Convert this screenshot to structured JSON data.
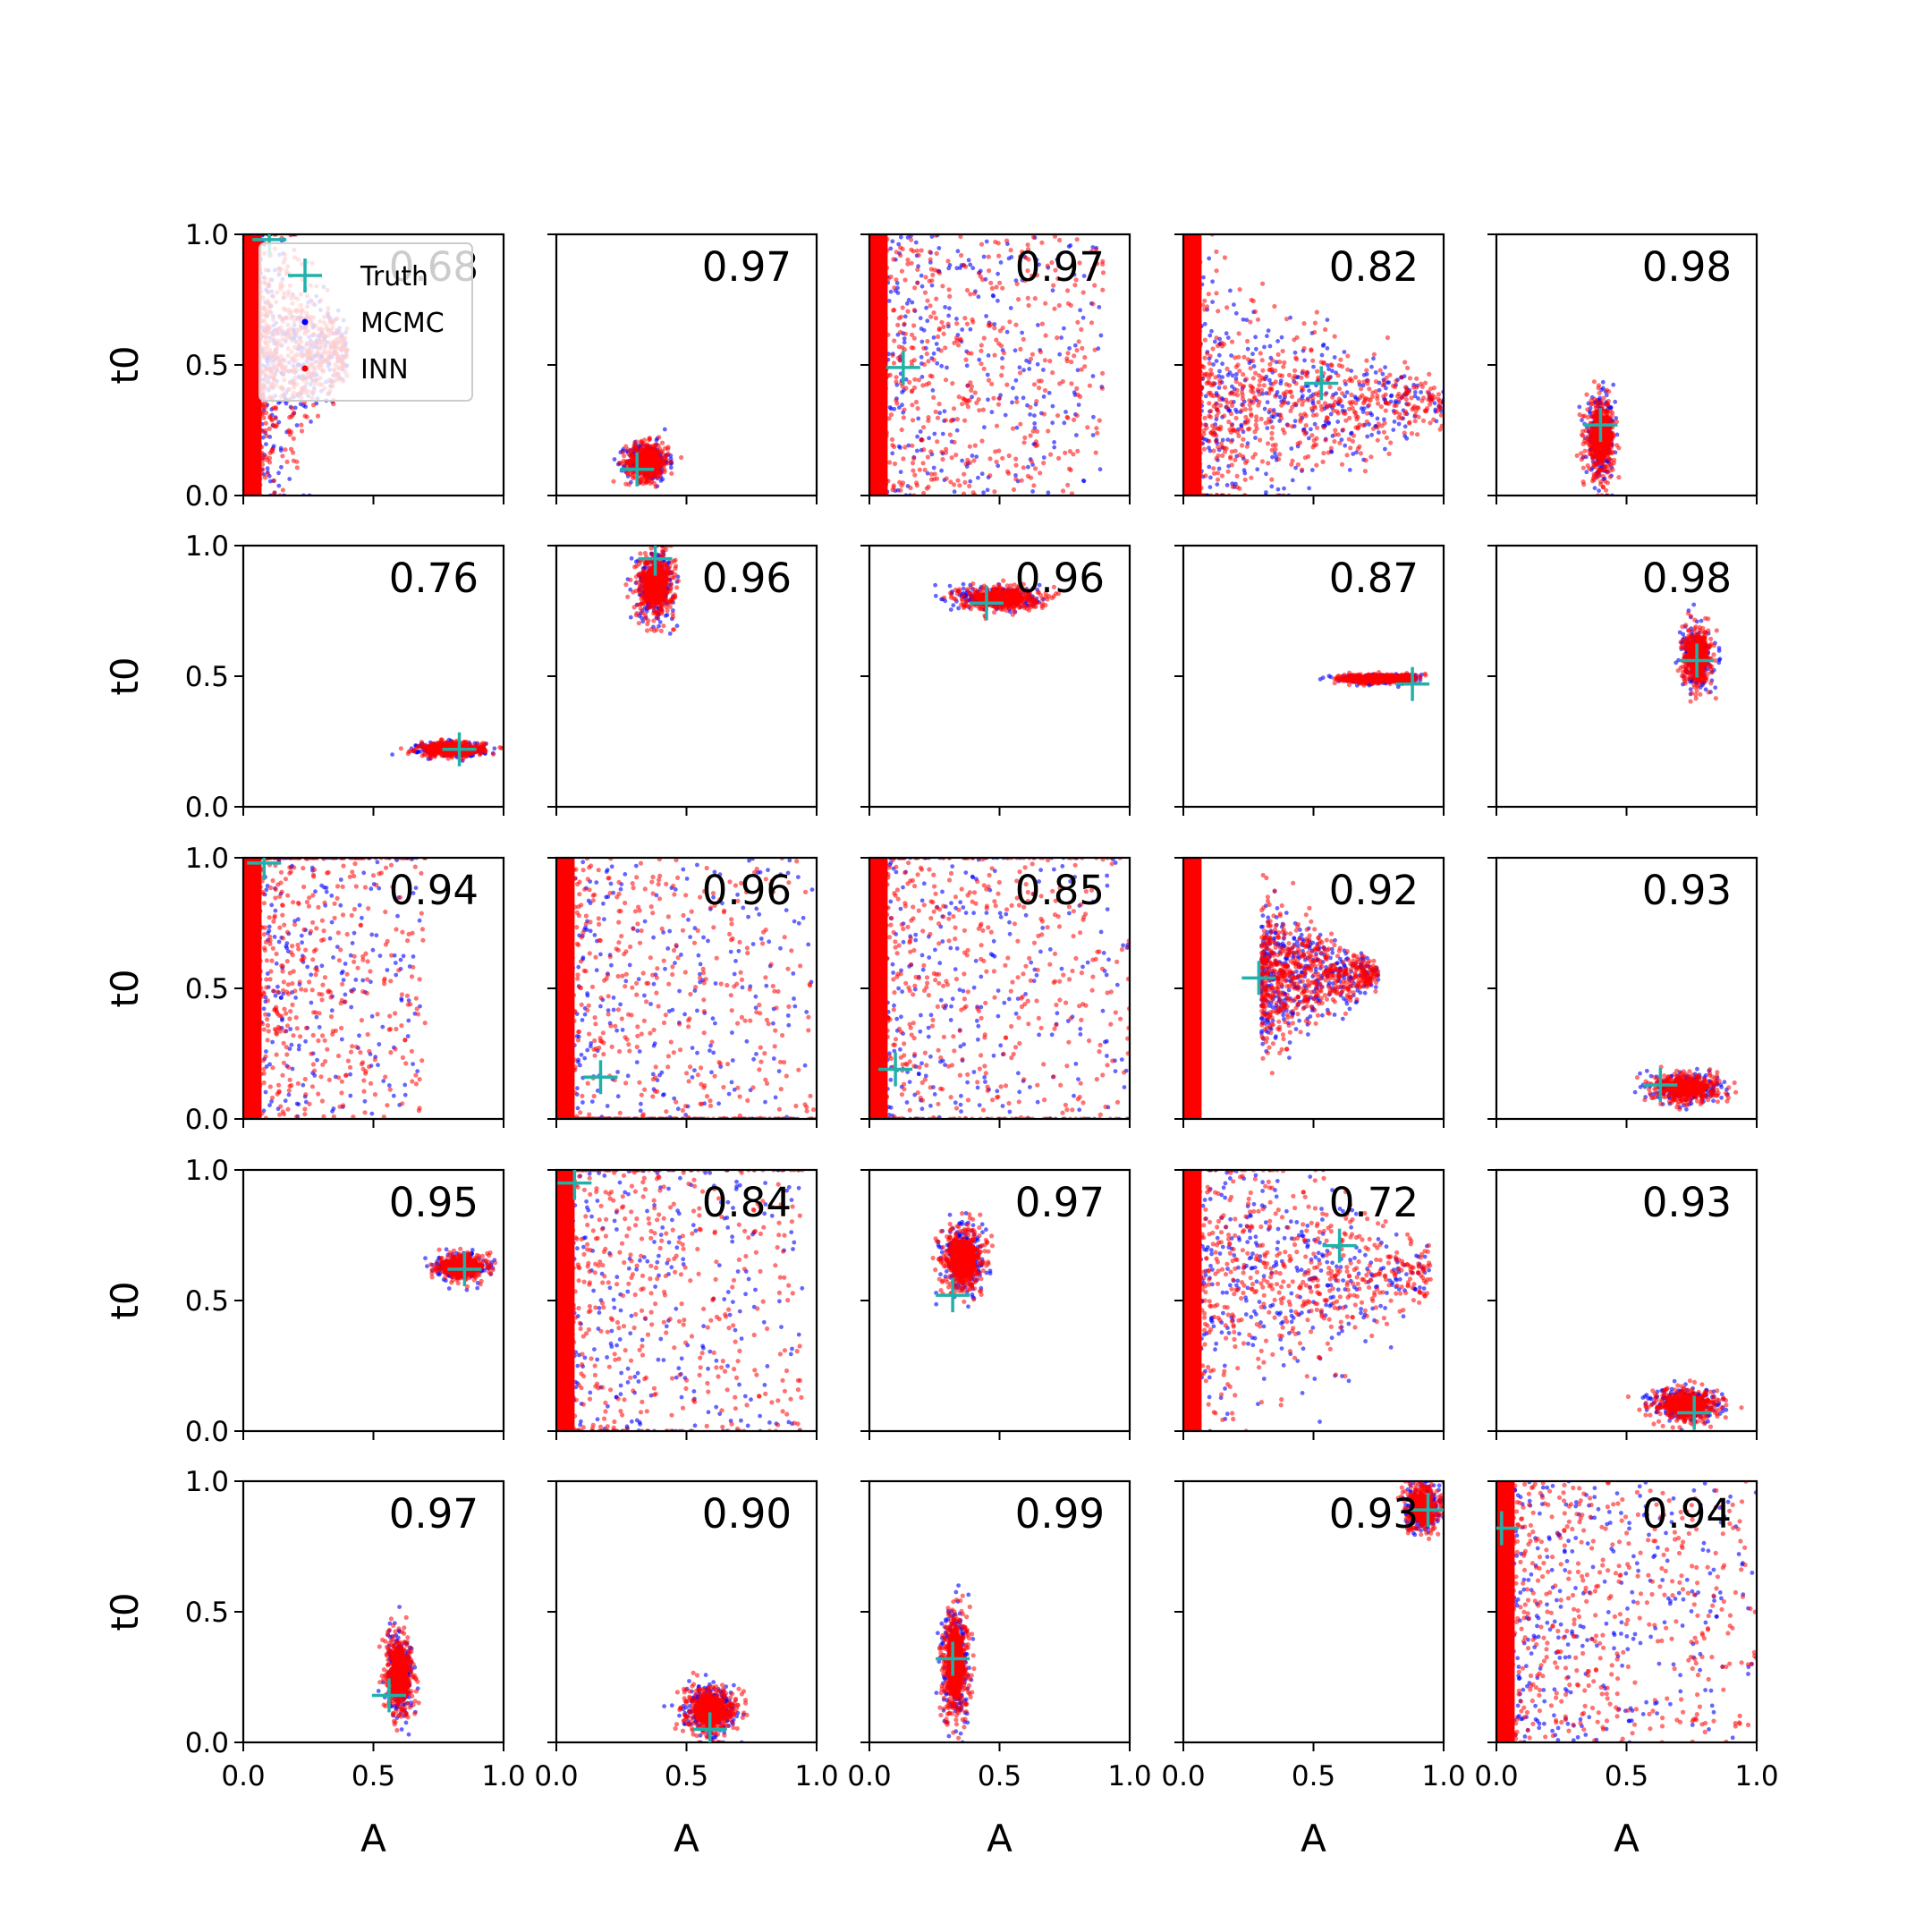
{
  "chart_data": {
    "type": "scatter",
    "grid": false,
    "layout": "5x5 grid of subplots",
    "xlabel": "A",
    "ylabel": "t0",
    "xlim": [
      0,
      1
    ],
    "ylim": [
      0,
      1
    ],
    "x_ticks": [
      "0.0",
      "0.5",
      "1.0"
    ],
    "y_ticks": [
      "0.0",
      "0.5",
      "1.0"
    ],
    "colors": {
      "truth": "#20b2aa",
      "mcmc": "#0000ff",
      "inn": "#ff0000"
    },
    "legend": {
      "placement": "upper-left of first panel",
      "entries": [
        {
          "label": "Truth",
          "color": "#20b2aa",
          "marker": "+"
        },
        {
          "label": "MCMC",
          "color": "#0000ff",
          "marker": "."
        },
        {
          "label": "INN",
          "color": "#ff0000",
          "marker": "."
        }
      ]
    },
    "panels": [
      {
        "score": "0.68",
        "truth": [
          0.1,
          0.98
        ],
        "shape": "wedge",
        "center": [
          0.05,
          0.55
        ],
        "spread": [
          0.35,
          0.4
        ]
      },
      {
        "score": "0.97",
        "truth": [
          0.31,
          0.1
        ],
        "shape": "blob",
        "center": [
          0.35,
          0.13
        ],
        "spread": [
          0.09,
          0.08
        ]
      },
      {
        "score": "0.97",
        "truth": [
          0.13,
          0.49
        ],
        "shape": "wide",
        "center": [
          0.0,
          0.5
        ],
        "spread": [
          0.9,
          0.5
        ]
      },
      {
        "score": "0.82",
        "truth": [
          0.53,
          0.43
        ],
        "shape": "fan",
        "center": [
          0.05,
          0.35
        ],
        "spread": [
          0.95,
          0.35
        ]
      },
      {
        "score": "0.98",
        "truth": [
          0.4,
          0.27
        ],
        "shape": "blob",
        "center": [
          0.4,
          0.22
        ],
        "spread": [
          0.06,
          0.16
        ]
      },
      {
        "score": "0.76",
        "truth": [
          0.83,
          0.22
        ],
        "shape": "blob",
        "center": [
          0.8,
          0.22
        ],
        "spread": [
          0.14,
          0.03
        ]
      },
      {
        "score": "0.96",
        "truth": [
          0.38,
          0.95
        ],
        "shape": "blob",
        "center": [
          0.38,
          0.85
        ],
        "spread": [
          0.08,
          0.14
        ]
      },
      {
        "score": "0.96",
        "truth": [
          0.45,
          0.78
        ],
        "shape": "blob",
        "center": [
          0.5,
          0.8
        ],
        "spread": [
          0.17,
          0.05
        ]
      },
      {
        "score": "0.87",
        "truth": [
          0.88,
          0.47
        ],
        "shape": "blob",
        "center": [
          0.75,
          0.49
        ],
        "spread": [
          0.17,
          0.02
        ]
      },
      {
        "score": "0.98",
        "truth": [
          0.77,
          0.56
        ],
        "shape": "blob",
        "center": [
          0.77,
          0.57
        ],
        "spread": [
          0.06,
          0.12
        ]
      },
      {
        "score": "0.94",
        "truth": [
          0.08,
          0.98
        ],
        "shape": "wide",
        "center": [
          0.0,
          0.6
        ],
        "spread": [
          0.7,
          0.6
        ]
      },
      {
        "score": "0.96",
        "truth": [
          0.17,
          0.16
        ],
        "shape": "wide",
        "center": [
          0.0,
          0.3
        ],
        "spread": [
          1.0,
          0.7
        ]
      },
      {
        "score": "0.85",
        "truth": [
          0.1,
          0.19
        ],
        "shape": "wide",
        "center": [
          0.0,
          0.5
        ],
        "spread": [
          1.0,
          0.6
        ]
      },
      {
        "score": "0.92",
        "truth": [
          0.29,
          0.54
        ],
        "shape": "fan",
        "center": [
          0.3,
          0.55
        ],
        "spread": [
          0.45,
          0.2
        ]
      },
      {
        "score": "0.93",
        "truth": [
          0.63,
          0.13
        ],
        "shape": "blob",
        "center": [
          0.73,
          0.12
        ],
        "spread": [
          0.14,
          0.06
        ]
      },
      {
        "score": "0.95",
        "truth": [
          0.85,
          0.62
        ],
        "shape": "blob",
        "center": [
          0.84,
          0.63
        ],
        "spread": [
          0.1,
          0.05
        ]
      },
      {
        "score": "0.84",
        "truth": [
          0.07,
          0.95
        ],
        "shape": "wide",
        "center": [
          0.0,
          0.5
        ],
        "spread": [
          0.95,
          0.6
        ]
      },
      {
        "score": "0.97",
        "truth": [
          0.32,
          0.52
        ],
        "shape": "blob",
        "center": [
          0.36,
          0.66
        ],
        "spread": [
          0.09,
          0.14
        ]
      },
      {
        "score": "0.72",
        "truth": [
          0.6,
          0.71
        ],
        "shape": "fan",
        "center": [
          0.0,
          0.6
        ],
        "spread": [
          0.95,
          0.45
        ]
      },
      {
        "score": "0.93",
        "truth": [
          0.76,
          0.07
        ],
        "shape": "blob",
        "center": [
          0.73,
          0.1
        ],
        "spread": [
          0.14,
          0.07
        ]
      },
      {
        "score": "0.97",
        "truth": [
          0.56,
          0.18
        ],
        "shape": "blob",
        "center": [
          0.6,
          0.26
        ],
        "spread": [
          0.06,
          0.17
        ]
      },
      {
        "score": "0.90",
        "truth": [
          0.59,
          0.05
        ],
        "shape": "blob",
        "center": [
          0.59,
          0.12
        ],
        "spread": [
          0.11,
          0.1
        ]
      },
      {
        "score": "0.99",
        "truth": [
          0.32,
          0.32
        ],
        "shape": "blob",
        "center": [
          0.33,
          0.3
        ],
        "spread": [
          0.06,
          0.24
        ]
      },
      {
        "score": "0.93",
        "truth": [
          0.94,
          0.89
        ],
        "shape": "blob",
        "center": [
          0.92,
          0.9
        ],
        "spread": [
          0.07,
          0.09
        ]
      },
      {
        "score": "0.94",
        "truth": [
          0.02,
          0.82
        ],
        "shape": "wide",
        "center": [
          0.0,
          0.5
        ],
        "spread": [
          1.0,
          0.5
        ]
      }
    ]
  }
}
